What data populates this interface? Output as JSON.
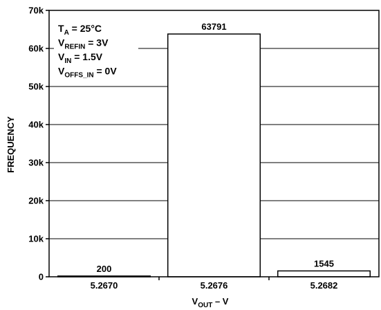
{
  "chart_data": {
    "type": "bar",
    "categories": [
      "5.2670",
      "5.2676",
      "5.2682"
    ],
    "values": [
      200,
      63791,
      1545
    ],
    "data_labels": [
      "200",
      "63791",
      "1545"
    ],
    "ylim": [
      0,
      70000
    ],
    "yticks": [
      0,
      10000,
      20000,
      30000,
      40000,
      50000,
      60000,
      70000
    ],
    "ytick_labels": [
      "0",
      "10k",
      "20k",
      "30k",
      "40k",
      "50k",
      "60k",
      "70k"
    ],
    "ylabel": "FREQUENCY",
    "xlabel": {
      "main": "V",
      "sub": "OUT",
      "suffix": " – V"
    },
    "grid": true,
    "conditions": [
      {
        "main": "T",
        "sub": "A",
        "rest": " = 25°C"
      },
      {
        "main": "V",
        "sub": "REFIN",
        "rest": " = 3V"
      },
      {
        "main": "V",
        "sub": "IN",
        "rest": " = 1.5V"
      },
      {
        "main": "V",
        "sub": "OFFS_IN",
        "rest": " = 0V"
      }
    ]
  }
}
